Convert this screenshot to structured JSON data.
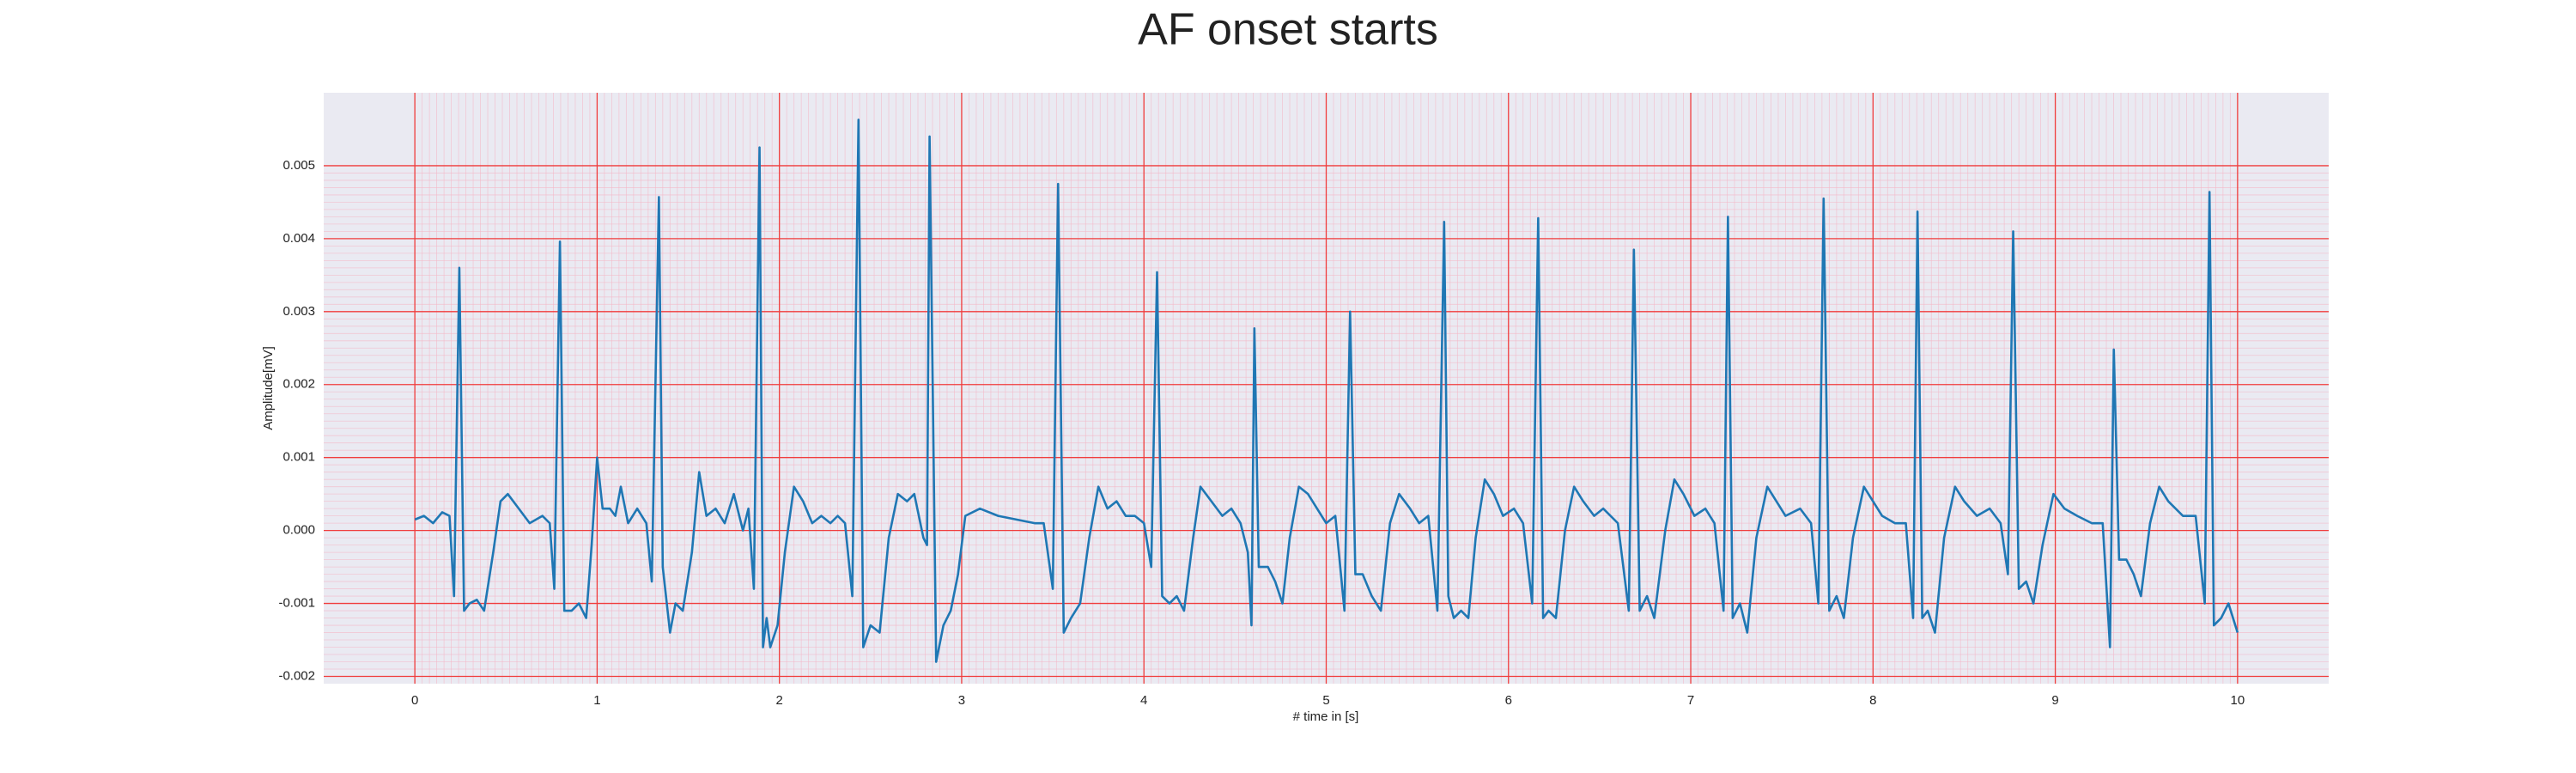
{
  "chart_data": {
    "type": "line",
    "title": "AF onset starts",
    "xlabel": "# time in [s]",
    "ylabel": "Amplitude[mV]",
    "color": "#1f77b4",
    "grid": true,
    "xlim": [
      -0.5,
      10.5
    ],
    "ylim": [
      -0.0021,
      0.006
    ],
    "xticks": [
      0,
      1,
      2,
      3,
      4,
      5,
      6,
      7,
      8,
      9,
      10
    ],
    "yticks": [
      -0.002,
      -0.001,
      {
        "value": 0,
        "label": "0.000"
      },
      0.001,
      0.002,
      0.003,
      0.004,
      0.005
    ],
    "x": [
      0.0,
      0.05,
      0.1,
      0.15,
      0.19,
      0.215,
      0.244,
      0.27,
      0.3,
      0.34,
      0.38,
      0.43,
      0.47,
      0.51,
      0.57,
      0.63,
      0.7,
      0.74,
      0.765,
      0.796,
      0.82,
      0.86,
      0.9,
      0.94,
      0.97,
      1.0,
      1.03,
      1.07,
      1.1,
      1.13,
      1.17,
      1.22,
      1.27,
      1.3,
      1.339,
      1.36,
      1.4,
      1.43,
      1.47,
      1.52,
      1.56,
      1.6,
      1.65,
      1.7,
      1.75,
      1.8,
      1.83,
      1.86,
      1.891,
      1.91,
      1.93,
      1.95,
      1.99,
      2.03,
      2.08,
      2.13,
      2.18,
      2.23,
      2.28,
      2.32,
      2.36,
      2.4,
      2.434,
      2.46,
      2.5,
      2.55,
      2.6,
      2.65,
      2.7,
      2.74,
      2.79,
      2.81,
      2.824,
      2.86,
      2.9,
      2.94,
      2.98,
      3.02,
      3.1,
      3.2,
      3.3,
      3.4,
      3.45,
      3.5,
      3.529,
      3.56,
      3.6,
      3.65,
      3.7,
      3.75,
      3.8,
      3.85,
      3.9,
      3.95,
      4.0,
      4.04,
      4.072,
      4.1,
      4.14,
      4.18,
      4.22,
      4.27,
      4.31,
      4.37,
      4.43,
      4.48,
      4.53,
      4.57,
      4.59,
      4.606,
      4.63,
      4.68,
      4.72,
      4.76,
      4.8,
      4.85,
      4.9,
      4.95,
      5.0,
      5.05,
      5.1,
      5.131,
      5.16,
      5.2,
      5.25,
      5.3,
      5.35,
      5.4,
      5.46,
      5.51,
      5.56,
      5.61,
      5.647,
      5.67,
      5.7,
      5.74,
      5.78,
      5.82,
      5.87,
      5.92,
      5.97,
      6.03,
      6.08,
      6.13,
      6.163,
      6.19,
      6.22,
      6.26,
      6.31,
      6.36,
      6.41,
      6.47,
      6.52,
      6.6,
      6.66,
      6.688,
      6.72,
      6.76,
      6.8,
      6.86,
      6.91,
      6.96,
      7.02,
      7.08,
      7.13,
      7.18,
      7.204,
      7.23,
      7.27,
      7.31,
      7.36,
      7.42,
      7.47,
      7.52,
      7.6,
      7.66,
      7.7,
      7.729,
      7.76,
      7.8,
      7.84,
      7.89,
      7.95,
      8.0,
      8.05,
      8.12,
      8.18,
      8.22,
      8.244,
      8.27,
      8.3,
      8.34,
      8.39,
      8.45,
      8.5,
      8.57,
      8.64,
      8.7,
      8.74,
      8.769,
      8.8,
      8.84,
      8.88,
      8.93,
      8.99,
      9.05,
      9.12,
      9.2,
      9.26,
      9.3,
      9.321,
      9.35,
      9.39,
      9.43,
      9.47,
      9.52,
      9.57,
      9.62,
      9.7,
      9.77,
      9.82,
      9.846,
      9.87,
      9.91,
      9.95,
      10.0
    ],
    "values": [
      0.00015,
      0.0002,
      0.0001,
      0.00025,
      0.0002,
      -0.0009,
      0.0036,
      -0.0011,
      -0.001,
      -0.00095,
      -0.0011,
      -0.0003,
      0.0004,
      0.0005,
      0.0003,
      0.0001,
      0.0002,
      0.0001,
      -0.0008,
      0.00396,
      -0.0011,
      -0.0011,
      -0.001,
      -0.0012,
      -0.0002,
      0.001,
      0.0003,
      0.0003,
      0.0002,
      0.0006,
      0.0001,
      0.0003,
      0.0001,
      -0.0007,
      0.00457,
      -0.0005,
      -0.0014,
      -0.001,
      -0.0011,
      -0.0003,
      0.0008,
      0.0002,
      0.0003,
      0.0001,
      0.0005,
      0.0,
      0.0003,
      -0.0008,
      0.00525,
      -0.0016,
      -0.0012,
      -0.0016,
      -0.0013,
      -0.0003,
      0.0006,
      0.0004,
      0.0001,
      0.0002,
      0.0001,
      0.0002,
      0.0001,
      -0.0009,
      0.00563,
      -0.0016,
      -0.0013,
      -0.0014,
      -0.0001,
      0.0005,
      0.0004,
      0.0005,
      -0.0001,
      -0.0002,
      0.0054,
      -0.0018,
      -0.0013,
      -0.0011,
      -0.0006,
      0.0002,
      0.0003,
      0.0002,
      0.00015,
      0.0001,
      0.0001,
      -0.0008,
      0.00475,
      -0.0014,
      -0.0012,
      -0.001,
      -0.0001,
      0.0006,
      0.0003,
      0.0004,
      0.0002,
      0.0002,
      0.0001,
      -0.0005,
      0.00354,
      -0.0009,
      -0.001,
      -0.0009,
      -0.0011,
      -0.0001,
      0.0006,
      0.0004,
      0.0002,
      0.0003,
      0.0001,
      -0.0003,
      -0.0013,
      0.00277,
      -0.0005,
      -0.0005,
      -0.0007,
      -0.001,
      -0.0001,
      0.0006,
      0.0005,
      0.0003,
      0.0001,
      0.0002,
      -0.0011,
      0.003,
      -0.0006,
      -0.0006,
      -0.0009,
      -0.0011,
      0.0001,
      0.0005,
      0.0003,
      0.0001,
      0.0002,
      -0.0011,
      0.00423,
      -0.0009,
      -0.0012,
      -0.0011,
      -0.0012,
      -0.0001,
      0.0007,
      0.0005,
      0.0002,
      0.0003,
      0.0001,
      -0.001,
      0.00428,
      -0.0012,
      -0.0011,
      -0.0012,
      0.0,
      0.0006,
      0.0004,
      0.0002,
      0.0003,
      0.0001,
      -0.0011,
      0.00385,
      -0.0011,
      -0.0009,
      -0.0012,
      0.0,
      0.0007,
      0.0005,
      0.0002,
      0.0003,
      0.0001,
      -0.0011,
      0.0043,
      -0.0012,
      -0.001,
      -0.0014,
      -0.0001,
      0.0006,
      0.0004,
      0.0002,
      0.0003,
      0.0001,
      -0.001,
      0.00455,
      -0.0011,
      -0.0009,
      -0.0012,
      -0.0001,
      0.0006,
      0.0004,
      0.0002,
      0.0001,
      0.0001,
      -0.0012,
      0.00437,
      -0.0012,
      -0.0011,
      -0.0014,
      -0.0001,
      0.0006,
      0.0004,
      0.0002,
      0.0003,
      0.0001,
      -0.0006,
      0.0041,
      -0.0008,
      -0.0007,
      -0.001,
      -0.0002,
      0.0005,
      0.0003,
      0.0002,
      0.0001,
      0.0001,
      -0.0016,
      0.00248,
      -0.0004,
      -0.0004,
      -0.0006,
      -0.0009,
      0.0001,
      0.0006,
      0.0004,
      0.0002,
      0.0002,
      -0.001,
      0.00464,
      -0.0013,
      -0.0012,
      -0.001,
      -0.0014
    ]
  }
}
